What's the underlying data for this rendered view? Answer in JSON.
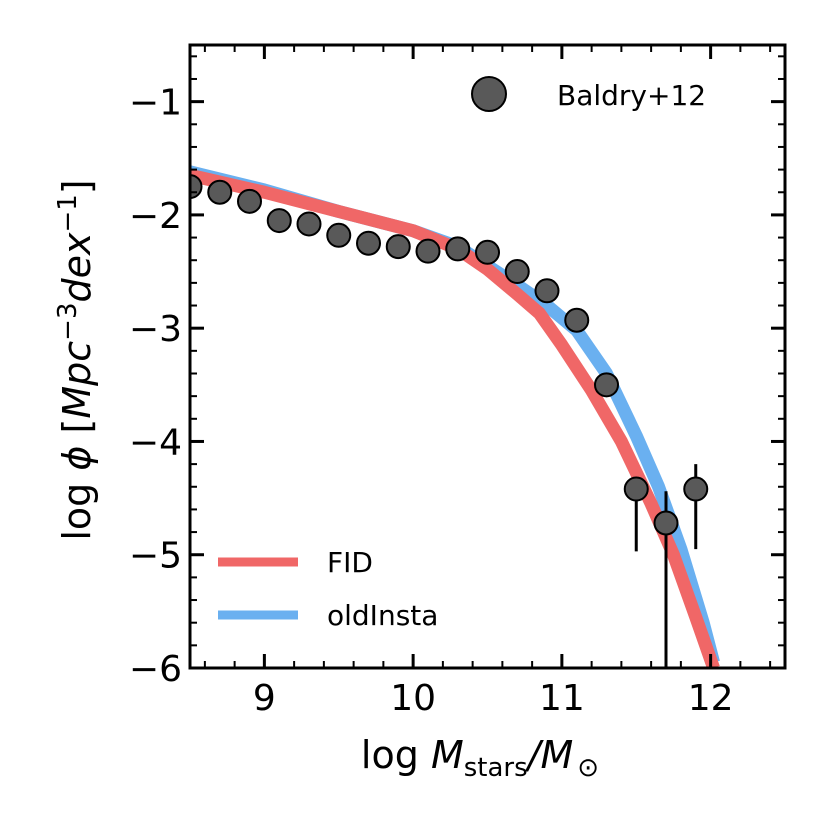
{
  "chart_data": {
    "type": "line",
    "xlabel": "log M_stars/M_☉",
    "ylabel": "log φ [Mpc^-3 dex^-1]",
    "xlim": [
      8.5,
      12.5
    ],
    "ylim": [
      -6.0,
      -0.5
    ],
    "x_ticks": [
      9,
      10,
      11,
      12
    ],
    "x_tick_labels": [
      "9",
      "10",
      "11",
      "12"
    ],
    "y_ticks": [
      -6,
      -5,
      -4,
      -3,
      -2,
      -1
    ],
    "y_tick_labels": [
      "−6",
      "−5",
      "−4",
      "−3",
      "−2",
      "−1"
    ],
    "axis_text": {
      "x_prefix": "log ",
      "x_var": "M",
      "x_sub": "stars",
      "x_mid": "/",
      "x_var2": "M",
      "x_sub2": "⊙",
      "y_prefix": "log ",
      "y_var": "ϕ",
      "y_bracket_open": " [",
      "y_unit1": "Mpc",
      "y_exp1": "−3",
      "y_unit2": "dex",
      "y_exp2": "−1",
      "y_bracket_close": "]"
    },
    "series": [
      {
        "name": "FID",
        "kind": "line",
        "color": "#f06767",
        "x": [
          8.5,
          9.0,
          9.5,
          10.0,
          10.3,
          10.5,
          10.7,
          10.85,
          11.0,
          11.2,
          11.4,
          11.6,
          11.75,
          11.9,
          12.02
        ],
        "y": [
          -1.65,
          -1.8,
          -1.97,
          -2.14,
          -2.3,
          -2.48,
          -2.7,
          -2.87,
          -3.15,
          -3.55,
          -4.0,
          -4.55,
          -5.0,
          -5.55,
          -6.0
        ]
      },
      {
        "name": "oldInsta",
        "kind": "line",
        "color": "#6ab0f0",
        "x": [
          8.5,
          9.0,
          9.5,
          10.0,
          10.3,
          10.5,
          10.7,
          10.9,
          11.1,
          11.3,
          11.5,
          11.65,
          11.8,
          11.95,
          12.02
        ],
        "y": [
          -1.62,
          -1.78,
          -1.97,
          -2.14,
          -2.28,
          -2.45,
          -2.62,
          -2.8,
          -3.02,
          -3.4,
          -3.95,
          -4.4,
          -4.95,
          -5.6,
          -5.95
        ]
      },
      {
        "name": "Baldry+12",
        "kind": "scatter",
        "color": "#595959",
        "x": [
          8.5,
          8.7,
          8.9,
          9.1,
          9.3,
          9.5,
          9.7,
          9.9,
          10.1,
          10.3,
          10.5,
          10.7,
          10.9,
          11.1,
          11.3,
          11.5,
          11.7,
          11.9
        ],
        "y": [
          -1.75,
          -1.8,
          -1.88,
          -2.05,
          -2.08,
          -2.18,
          -2.25,
          -2.28,
          -2.32,
          -2.3,
          -2.33,
          -2.5,
          -2.67,
          -2.93,
          -3.5,
          -4.42,
          -4.72,
          -4.42
        ],
        "err_low": [
          0,
          0,
          0,
          0,
          0,
          0,
          0,
          0,
          0,
          0,
          0,
          0,
          0,
          0,
          0,
          0.55,
          1.28,
          0.53
        ],
        "err_high": [
          0,
          0,
          0,
          0,
          0,
          0,
          0,
          0,
          0,
          0,
          0,
          0,
          0,
          0,
          0,
          0.1,
          0.28,
          0.22
        ]
      }
    ],
    "legend": {
      "lines_location": "lower-left",
      "points_location": "upper-right",
      "entries": [
        "FID",
        "oldInsta",
        "Baldry+12"
      ]
    }
  }
}
